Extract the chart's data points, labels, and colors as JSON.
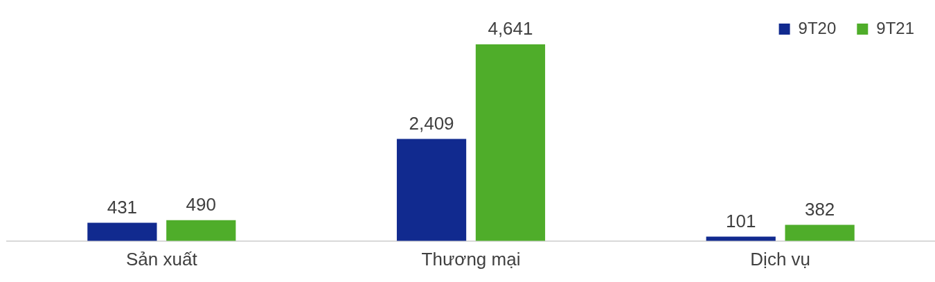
{
  "chart_data": {
    "type": "bar",
    "categories": [
      "Sản xuất",
      "Thương mại",
      "Dịch vụ"
    ],
    "series": [
      {
        "name": "9T20",
        "color": "#112a8f",
        "values": [
          431,
          2409,
          101
        ],
        "value_labels": [
          "431",
          "2,409",
          "101"
        ]
      },
      {
        "name": "9T21",
        "color": "#4fad2a",
        "values": [
          490,
          4641,
          382
        ],
        "value_labels": [
          "490",
          "4,641",
          "382"
        ]
      }
    ],
    "legend": "top right",
    "grid": false
  }
}
